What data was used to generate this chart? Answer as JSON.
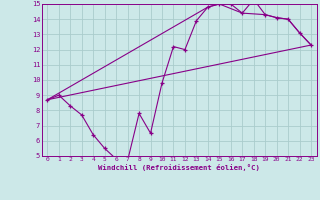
{
  "xlabel": "Windchill (Refroidissement éolien,°C)",
  "xlim": [
    -0.5,
    23.5
  ],
  "ylim": [
    5,
    15
  ],
  "xticks": [
    0,
    1,
    2,
    3,
    4,
    5,
    6,
    7,
    8,
    9,
    10,
    11,
    12,
    13,
    14,
    15,
    16,
    17,
    18,
    19,
    20,
    21,
    22,
    23
  ],
  "yticks": [
    5,
    6,
    7,
    8,
    9,
    10,
    11,
    12,
    13,
    14,
    15
  ],
  "bg_color": "#cce8e8",
  "line_color": "#880088",
  "grid_color": "#aacccc",
  "line1_x": [
    0,
    1,
    2,
    3,
    4,
    5,
    6,
    7,
    8,
    9,
    10,
    11,
    12,
    13,
    14,
    15,
    16,
    17,
    18,
    19,
    20,
    21,
    22,
    23
  ],
  "line1_y": [
    8.7,
    9.0,
    8.3,
    7.7,
    6.4,
    5.5,
    4.8,
    4.7,
    7.8,
    6.5,
    9.8,
    12.2,
    12.0,
    13.9,
    14.8,
    15.0,
    15.0,
    14.4,
    15.3,
    14.3,
    14.1,
    14.0,
    13.1,
    12.3
  ],
  "line2_x": [
    0,
    23
  ],
  "line2_y": [
    8.7,
    12.3
  ],
  "line3_x": [
    0,
    14,
    15,
    17,
    19,
    20,
    21,
    22,
    23
  ],
  "line3_y": [
    8.7,
    14.8,
    15.0,
    14.4,
    14.3,
    14.1,
    14.0,
    13.1,
    12.3
  ],
  "marker_x": [
    0,
    1,
    2,
    3,
    4,
    5,
    6,
    7,
    8,
    9,
    10,
    11,
    12,
    13,
    14,
    15,
    16,
    17,
    18,
    19,
    20,
    21,
    22,
    23
  ],
  "marker_y": [
    8.7,
    9.0,
    8.3,
    7.7,
    6.4,
    5.5,
    4.8,
    4.7,
    7.8,
    6.5,
    9.8,
    12.2,
    12.0,
    13.9,
    14.8,
    15.0,
    15.0,
    14.4,
    15.3,
    14.3,
    14.1,
    14.0,
    13.1,
    12.3
  ]
}
